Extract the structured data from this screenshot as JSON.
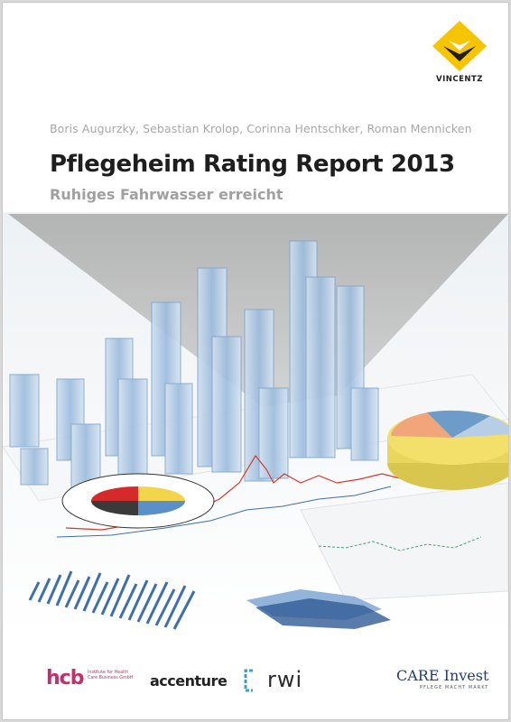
{
  "book": {
    "authors": "Boris Augurzky, Sebastian Krolop, Corinna Hentschker, Roman Mennicken",
    "title": "Pflegeheim Rating Report 2013",
    "subtitle": "Ruhiges Fahrwasser erreicht"
  },
  "publisher": {
    "name": "VINCENTZ",
    "icon": "diamond-logo-icon",
    "colors": {
      "yellow": "#f6c400",
      "dark": "#1e1e1e"
    }
  },
  "illustration": {
    "icon": "business-charts-illustration",
    "colors": {
      "bar_blue": "#8fb3d6",
      "pie_yellow": "#f2e06a",
      "pie_blue": "#6d9cc8",
      "pie_orange": "#f2a57a",
      "line_red": "#d43a2a",
      "triangle_gray": "#bdbdbd"
    }
  },
  "sponsors": {
    "hcb": {
      "mark": "hcb",
      "text": "Institute for Health Care Business GmbH",
      "color": "#c0306a"
    },
    "accenture": {
      "mark": "accenture"
    },
    "rwi": {
      "mark": "rwi"
    },
    "care_invest": {
      "mark_care": "CARE",
      "mark_invest": " Invest",
      "tagline": "PFLEGE MACHT MARKT",
      "color": "#1f3d7a"
    }
  }
}
